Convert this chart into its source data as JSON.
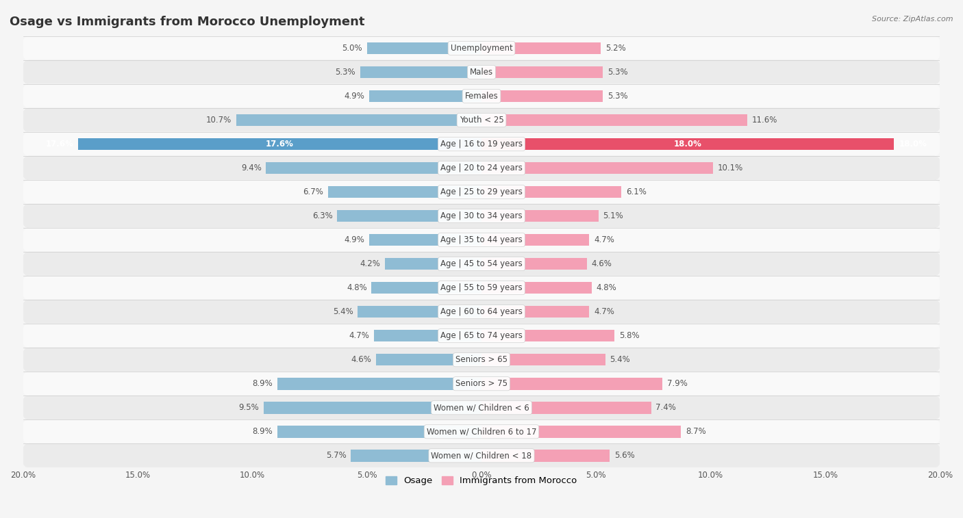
{
  "title": "Osage vs Immigrants from Morocco Unemployment",
  "source": "Source: ZipAtlas.com",
  "categories": [
    "Unemployment",
    "Males",
    "Females",
    "Youth < 25",
    "Age | 16 to 19 years",
    "Age | 20 to 24 years",
    "Age | 25 to 29 years",
    "Age | 30 to 34 years",
    "Age | 35 to 44 years",
    "Age | 45 to 54 years",
    "Age | 55 to 59 years",
    "Age | 60 to 64 years",
    "Age | 65 to 74 years",
    "Seniors > 65",
    "Seniors > 75",
    "Women w/ Children < 6",
    "Women w/ Children 6 to 17",
    "Women w/ Children < 18"
  ],
  "osage_values": [
    5.0,
    5.3,
    4.9,
    10.7,
    17.6,
    9.4,
    6.7,
    6.3,
    4.9,
    4.2,
    4.8,
    5.4,
    4.7,
    4.6,
    8.9,
    9.5,
    8.9,
    5.7
  ],
  "morocco_values": [
    5.2,
    5.3,
    5.3,
    11.6,
    18.0,
    10.1,
    6.1,
    5.1,
    4.7,
    4.6,
    4.8,
    4.7,
    5.8,
    5.4,
    7.9,
    7.4,
    8.7,
    5.6
  ],
  "osage_color": "#8fbcd4",
  "morocco_color": "#f4a0b5",
  "osage_highlight_color": "#5a9ec9",
  "morocco_highlight_color": "#e8506a",
  "highlight_row": 4,
  "xlim": 20.0,
  "bar_height": 0.5,
  "row_bg_white": "#f9f9f9",
  "row_bg_gray": "#ebebeb",
  "fig_bg": "#f5f5f5",
  "legend_osage": "Osage",
  "legend_morocco": "Immigrants from Morocco",
  "title_fontsize": 13,
  "value_fontsize": 8.5,
  "category_fontsize": 8.5
}
